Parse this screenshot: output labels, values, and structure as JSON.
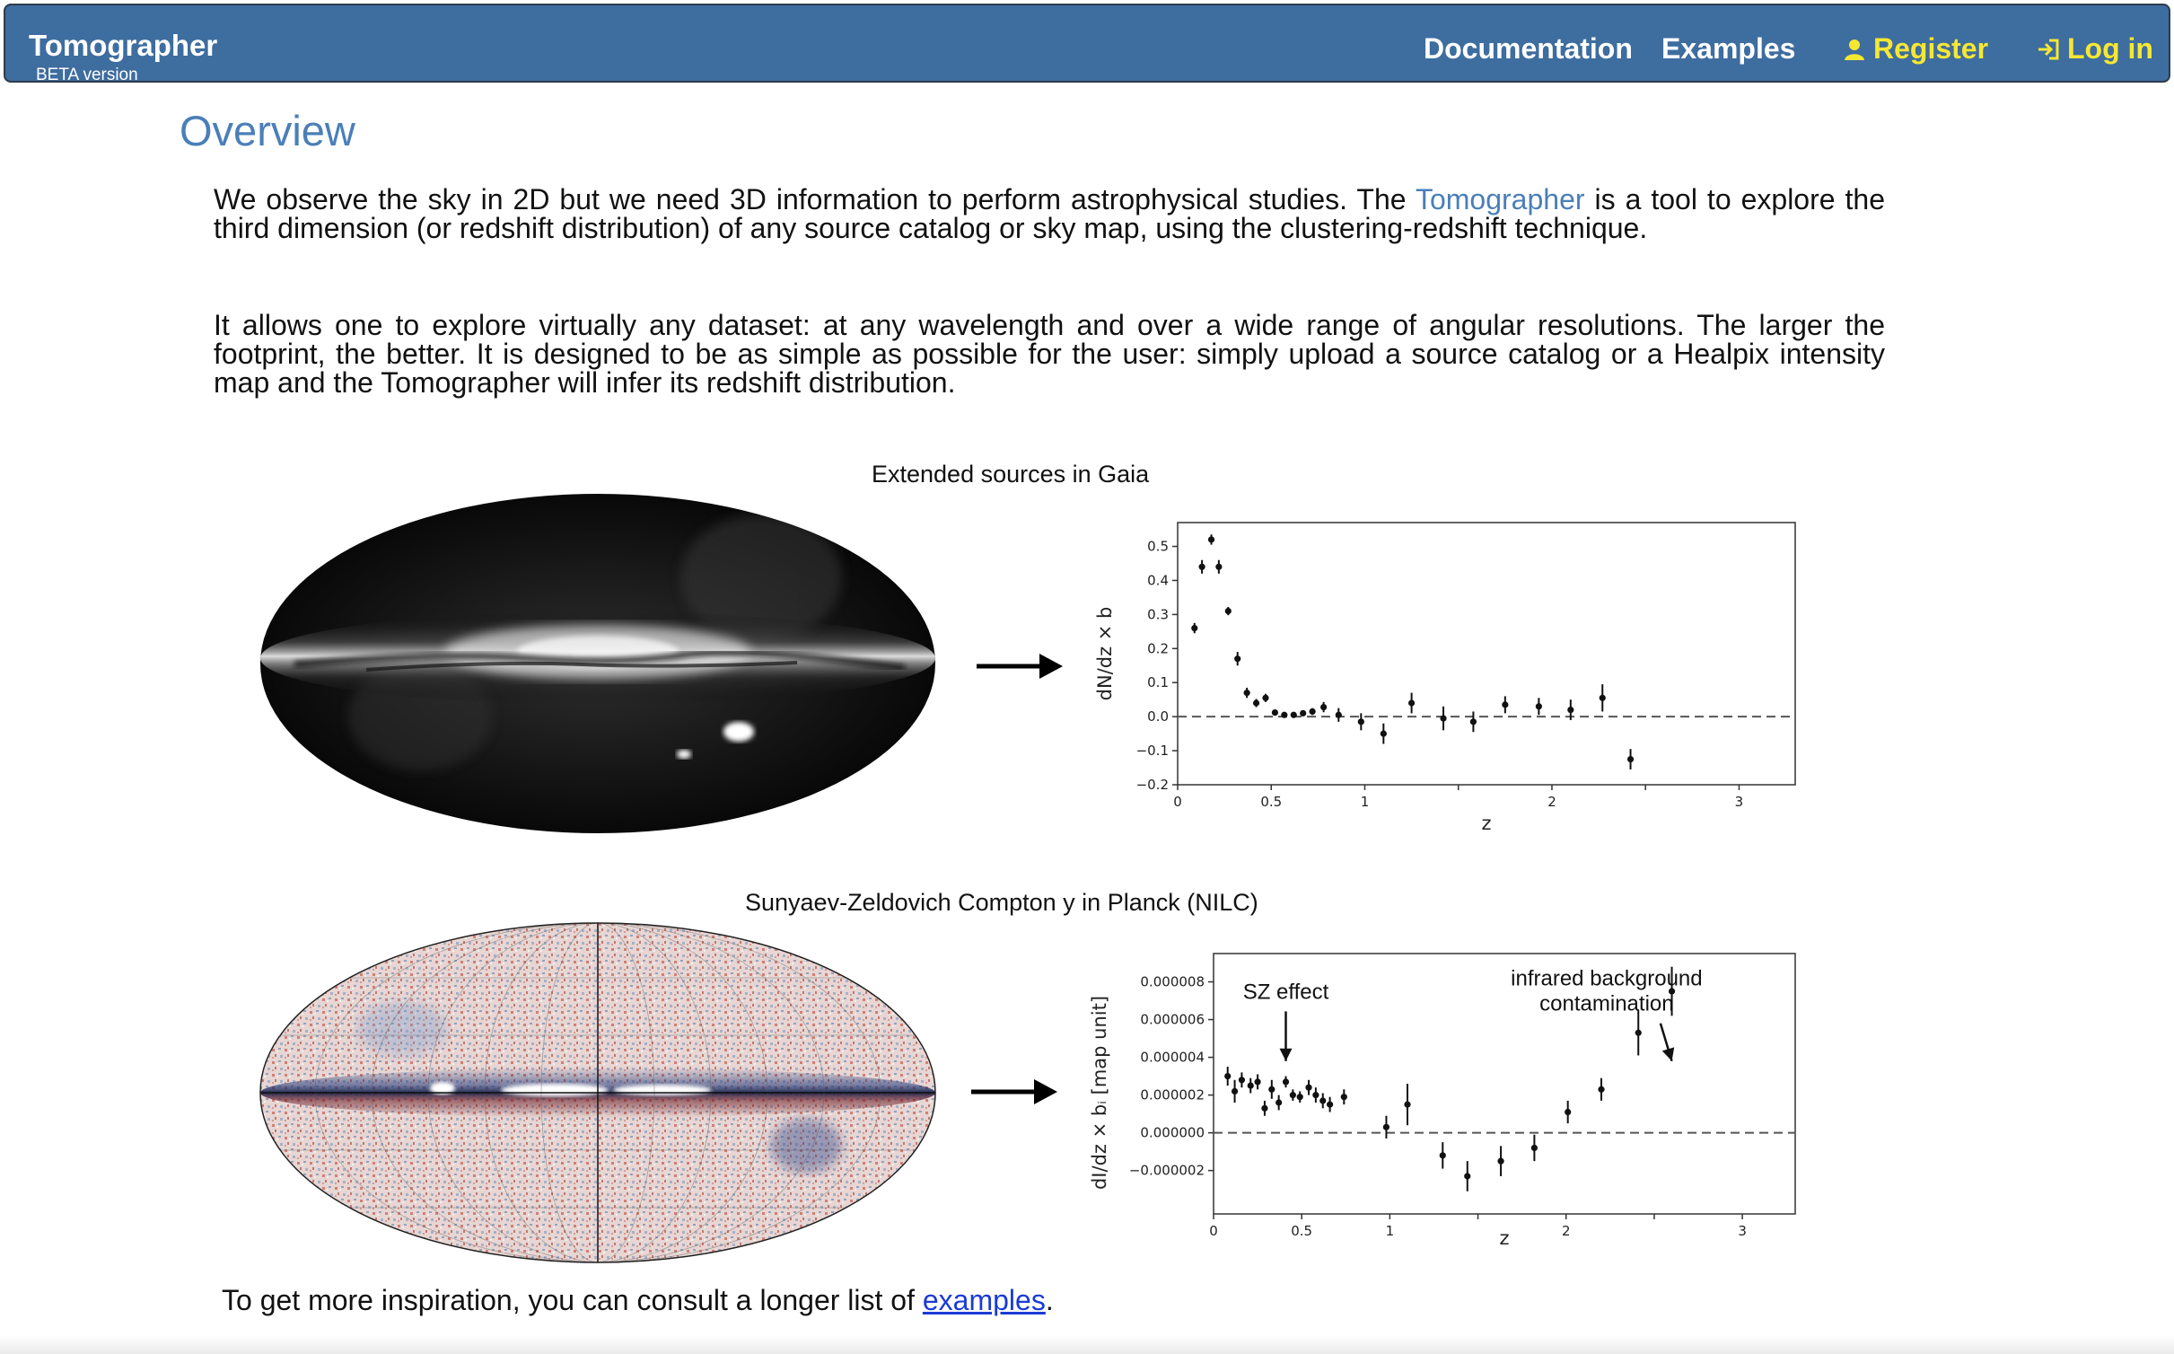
{
  "navbar": {
    "brand": "Tomographer",
    "beta": "BETA version",
    "documentation": "Documentation",
    "examples": "Examples",
    "register": "Register",
    "login": "Log in",
    "colors": {
      "bar": "#3e6d9f",
      "accent": "#f6e733"
    },
    "icons": {
      "register": "user-icon",
      "login": "login-icon"
    }
  },
  "overview": {
    "title": "Overview",
    "p1_a": "We observe the sky in 2D but we need 3D information to perform astrophysical studies. The ",
    "p1_link": "Tomographer",
    "p1_b": " is a tool to explore the third dimension (or redshift distribution) of any source catalog or sky map, using the clustering-redshift technique.",
    "p2": "It allows one to explore virtually any dataset: at any wavelength and over a wide range of angular resolutions. The larger the footprint, the better. It is designed to be as simple as possible for the user: simply upload a source catalog or a Healpix intensity map and the Tomographer will infer its redshift distribution."
  },
  "footer": {
    "text_before": "To get more inspiration, you can consult a longer list of ",
    "link": "examples",
    "text_after": "."
  },
  "chart_data": [
    {
      "type": "scatter",
      "title": "Extended sources in Gaia",
      "xlabel": "z",
      "ylabel": "dN/dz × b",
      "xlim": [
        0,
        3.3
      ],
      "ylim": [
        -0.2,
        0.57
      ],
      "xticks": [
        {
          "v": 0,
          "label": "0"
        },
        {
          "v": 0.5,
          "label": "0.5"
        },
        {
          "v": 1,
          "label": "1"
        },
        {
          "v": 1.5,
          "label": ""
        },
        {
          "v": 2,
          "label": "2"
        },
        {
          "v": 2.5,
          "label": ""
        },
        {
          "v": 3,
          "label": "3"
        }
      ],
      "yticks": [
        {
          "v": 0.5,
          "label": "0.5"
        },
        {
          "v": 0.4,
          "label": "0.4"
        },
        {
          "v": 0.3,
          "label": "0.3"
        },
        {
          "v": 0.2,
          "label": "0.2"
        },
        {
          "v": 0.1,
          "label": "0.1"
        },
        {
          "v": 0.0,
          "label": "0.0"
        },
        {
          "v": -0.1,
          "label": "−0.1"
        },
        {
          "v": -0.2,
          "label": "−0.2"
        }
      ],
      "reference_line": 0,
      "points": [
        {
          "x": 0.09,
          "y": 0.26,
          "err": 0.015
        },
        {
          "x": 0.13,
          "y": 0.44,
          "err": 0.02
        },
        {
          "x": 0.18,
          "y": 0.52,
          "err": 0.015
        },
        {
          "x": 0.22,
          "y": 0.44,
          "err": 0.02
        },
        {
          "x": 0.27,
          "y": 0.31,
          "err": 0.012
        },
        {
          "x": 0.32,
          "y": 0.17,
          "err": 0.02
        },
        {
          "x": 0.37,
          "y": 0.07,
          "err": 0.015
        },
        {
          "x": 0.42,
          "y": 0.04,
          "err": 0.012
        },
        {
          "x": 0.47,
          "y": 0.055,
          "err": 0.012
        },
        {
          "x": 0.52,
          "y": 0.012,
          "err": 0.008
        },
        {
          "x": 0.57,
          "y": 0.005,
          "err": 0.008
        },
        {
          "x": 0.62,
          "y": 0.005,
          "err": 0.008
        },
        {
          "x": 0.67,
          "y": 0.01,
          "err": 0.008
        },
        {
          "x": 0.72,
          "y": 0.015,
          "err": 0.01
        },
        {
          "x": 0.78,
          "y": 0.028,
          "err": 0.015
        },
        {
          "x": 0.86,
          "y": 0.005,
          "err": 0.02
        },
        {
          "x": 0.98,
          "y": -0.015,
          "err": 0.025
        },
        {
          "x": 1.1,
          "y": -0.05,
          "err": 0.03
        },
        {
          "x": 1.25,
          "y": 0.04,
          "err": 0.03
        },
        {
          "x": 1.42,
          "y": -0.005,
          "err": 0.035
        },
        {
          "x": 1.58,
          "y": -0.015,
          "err": 0.03
        },
        {
          "x": 1.75,
          "y": 0.035,
          "err": 0.025
        },
        {
          "x": 1.93,
          "y": 0.03,
          "err": 0.025
        },
        {
          "x": 2.1,
          "y": 0.02,
          "err": 0.03
        },
        {
          "x": 2.27,
          "y": 0.055,
          "err": 0.04
        },
        {
          "x": 2.42,
          "y": -0.125,
          "err": 0.03
        }
      ]
    },
    {
      "type": "scatter",
      "title": "Sunyaev-Zeldovich Compton y in Planck (NILC)",
      "xlabel": "z",
      "ylabel": "dI/dz × bᵢ  [map unit]",
      "xlim": [
        0,
        3.3
      ],
      "ylim": [
        -4.3e-06,
        9.5e-06
      ],
      "xticks": [
        {
          "v": 0,
          "label": "0"
        },
        {
          "v": 0.5,
          "label": "0.5"
        },
        {
          "v": 1,
          "label": "1"
        },
        {
          "v": 1.5,
          "label": ""
        },
        {
          "v": 2,
          "label": "2"
        },
        {
          "v": 2.5,
          "label": ""
        },
        {
          "v": 3,
          "label": "3"
        }
      ],
      "yticks": [
        {
          "v": 8e-06,
          "label": "0.000008"
        },
        {
          "v": 6e-06,
          "label": "0.000006"
        },
        {
          "v": 4e-06,
          "label": "0.000004"
        },
        {
          "v": 2e-06,
          "label": "0.000002"
        },
        {
          "v": 0.0,
          "label": "0.000000"
        },
        {
          "v": -2e-06,
          "label": "−0.000002"
        }
      ],
      "reference_line": 0,
      "annotations": [
        {
          "text": [
            "SZ effect"
          ],
          "x": 0.41,
          "y": 7.1e-06,
          "arrow_to": {
            "x": 0.41,
            "y": 3.8e-06
          }
        },
        {
          "text": [
            "infrared background",
            "contamination"
          ],
          "x": 2.23,
          "y": 7.8e-06,
          "arrow_to": {
            "x": 2.6,
            "y": 3.8e-06
          }
        }
      ],
      "points": [
        {
          "x": 0.08,
          "y": 3e-06,
          "err": 5e-07
        },
        {
          "x": 0.12,
          "y": 2.2e-06,
          "err": 6e-07
        },
        {
          "x": 0.16,
          "y": 2.8e-06,
          "err": 4e-07
        },
        {
          "x": 0.21,
          "y": 2.5e-06,
          "err": 4e-07
        },
        {
          "x": 0.25,
          "y": 2.7e-06,
          "err": 4e-07
        },
        {
          "x": 0.29,
          "y": 1.3e-06,
          "err": 4e-07
        },
        {
          "x": 0.33,
          "y": 2.3e-06,
          "err": 5e-07
        },
        {
          "x": 0.37,
          "y": 1.6e-06,
          "err": 4e-07
        },
        {
          "x": 0.41,
          "y": 2.7e-06,
          "err": 3e-07
        },
        {
          "x": 0.45,
          "y": 2e-06,
          "err": 3e-07
        },
        {
          "x": 0.49,
          "y": 1.9e-06,
          "err": 3e-07
        },
        {
          "x": 0.54,
          "y": 2.4e-06,
          "err": 4e-07
        },
        {
          "x": 0.58,
          "y": 2e-06,
          "err": 4e-07
        },
        {
          "x": 0.62,
          "y": 1.7e-06,
          "err": 4e-07
        },
        {
          "x": 0.66,
          "y": 1.5e-06,
          "err": 4e-07
        },
        {
          "x": 0.74,
          "y": 1.9e-06,
          "err": 4e-07
        },
        {
          "x": 0.98,
          "y": 3e-07,
          "err": 6e-07
        },
        {
          "x": 1.1,
          "y": 1.5e-06,
          "err": 1.1e-06
        },
        {
          "x": 1.3,
          "y": -1.2e-06,
          "err": 7e-07
        },
        {
          "x": 1.44,
          "y": -2.3e-06,
          "err": 8e-07
        },
        {
          "x": 1.63,
          "y": -1.5e-06,
          "err": 8e-07
        },
        {
          "x": 1.82,
          "y": -8e-07,
          "err": 7e-07
        },
        {
          "x": 2.01,
          "y": 1.1e-06,
          "err": 6e-07
        },
        {
          "x": 2.2,
          "y": 2.3e-06,
          "err": 6e-07
        },
        {
          "x": 2.41,
          "y": 5.3e-06,
          "err": 1.2e-06
        },
        {
          "x": 2.6,
          "y": 7.5e-06,
          "err": 1.3e-06
        }
      ]
    }
  ]
}
